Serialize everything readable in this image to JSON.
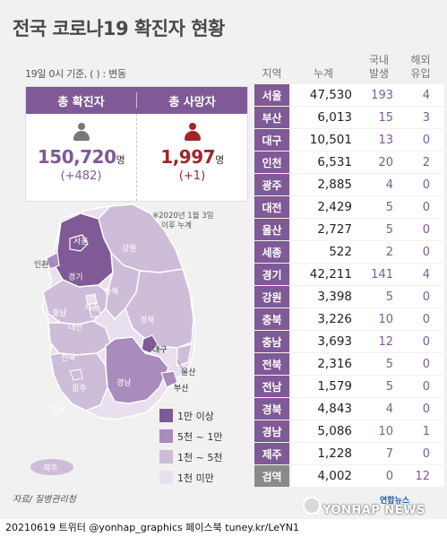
{
  "title": "전국 코로나19 확진자 현황",
  "subtitle": "19일 0시 기준, ( ) : 변동",
  "summary": {
    "confirmed_label": "총 확진자",
    "confirmed_value": "150,720",
    "confirmed_unit": "명",
    "confirmed_change": "(+482)",
    "deaths_label": "총 사망자",
    "deaths_value": "1,997",
    "deaths_unit": "명",
    "deaths_change": "(+1)"
  },
  "map": {
    "note_line1": "※2020년 1월 3일",
    "note_line2": "이후 누계",
    "labels": {
      "seoul": "서울",
      "incheon": "인천",
      "gyeonggi": "경기",
      "gangwon": "강원",
      "chungbuk": "충북",
      "sejong": "세종",
      "chungnam": "충남",
      "daejeon": "대전",
      "gyeongbuk": "경북",
      "daegu": "대구",
      "jeonbuk": "전북",
      "gwangju": "광주",
      "jeonnam": "전남",
      "gyeongnam": "경남",
      "ulsan": "울산",
      "busan": "부산",
      "jeju": "제주"
    }
  },
  "legend": [
    {
      "label": "1만 이상",
      "color": "#7f5a96"
    },
    {
      "label": "5천 ~ 1만",
      "color": "#a98bbd"
    },
    {
      "label": "1천 ~ 5천",
      "color": "#cdbdd8"
    },
    {
      "label": "1천 미만",
      "color": "#e8e0ee"
    }
  ],
  "table": {
    "headers": {
      "region": "지역",
      "total": "누계",
      "domestic_1": "국내",
      "domestic_2": "발생",
      "imported_1": "해외",
      "imported_2": "유입"
    },
    "rows": [
      {
        "region": "서울",
        "total": "47,530",
        "domestic": "193",
        "imported": "4"
      },
      {
        "region": "부산",
        "total": "6,013",
        "domestic": "15",
        "imported": "3"
      },
      {
        "region": "대구",
        "total": "10,501",
        "domestic": "13",
        "imported": "0"
      },
      {
        "region": "인천",
        "total": "6,531",
        "domestic": "20",
        "imported": "2"
      },
      {
        "region": "광주",
        "total": "2,885",
        "domestic": "4",
        "imported": "0"
      },
      {
        "region": "대전",
        "total": "2,429",
        "domestic": "5",
        "imported": "0"
      },
      {
        "region": "울산",
        "total": "2,727",
        "domestic": "5",
        "imported": "0"
      },
      {
        "region": "세종",
        "total": "522",
        "domestic": "2",
        "imported": "0"
      },
      {
        "region": "경기",
        "total": "42,211",
        "domestic": "141",
        "imported": "4"
      },
      {
        "region": "강원",
        "total": "3,398",
        "domestic": "5",
        "imported": "0"
      },
      {
        "region": "충북",
        "total": "3,226",
        "domestic": "10",
        "imported": "0"
      },
      {
        "region": "충남",
        "total": "3,693",
        "domestic": "12",
        "imported": "0"
      },
      {
        "region": "전북",
        "total": "2,316",
        "domestic": "5",
        "imported": "0"
      },
      {
        "region": "전남",
        "total": "1,579",
        "domestic": "5",
        "imported": "0"
      },
      {
        "region": "경북",
        "total": "4,843",
        "domestic": "4",
        "imported": "0"
      },
      {
        "region": "경남",
        "total": "5,086",
        "domestic": "10",
        "imported": "1"
      },
      {
        "region": "제주",
        "total": "1,228",
        "domestic": "7",
        "imported": "0"
      },
      {
        "region": "검역",
        "total": "4,002",
        "domestic": "0",
        "imported": "12"
      }
    ]
  },
  "source": "자료/ 질병관리청",
  "brand": {
    "name_kr": "연합뉴스",
    "name_en": "YONHAP NEWS"
  },
  "credit": "20210619 트위터 @yonhap_graphics  페이스북 tuney.kr/LeYN1",
  "colors": {
    "accent": "#7f5a96",
    "death": "#a0262b",
    "person_gray": "#777777"
  }
}
